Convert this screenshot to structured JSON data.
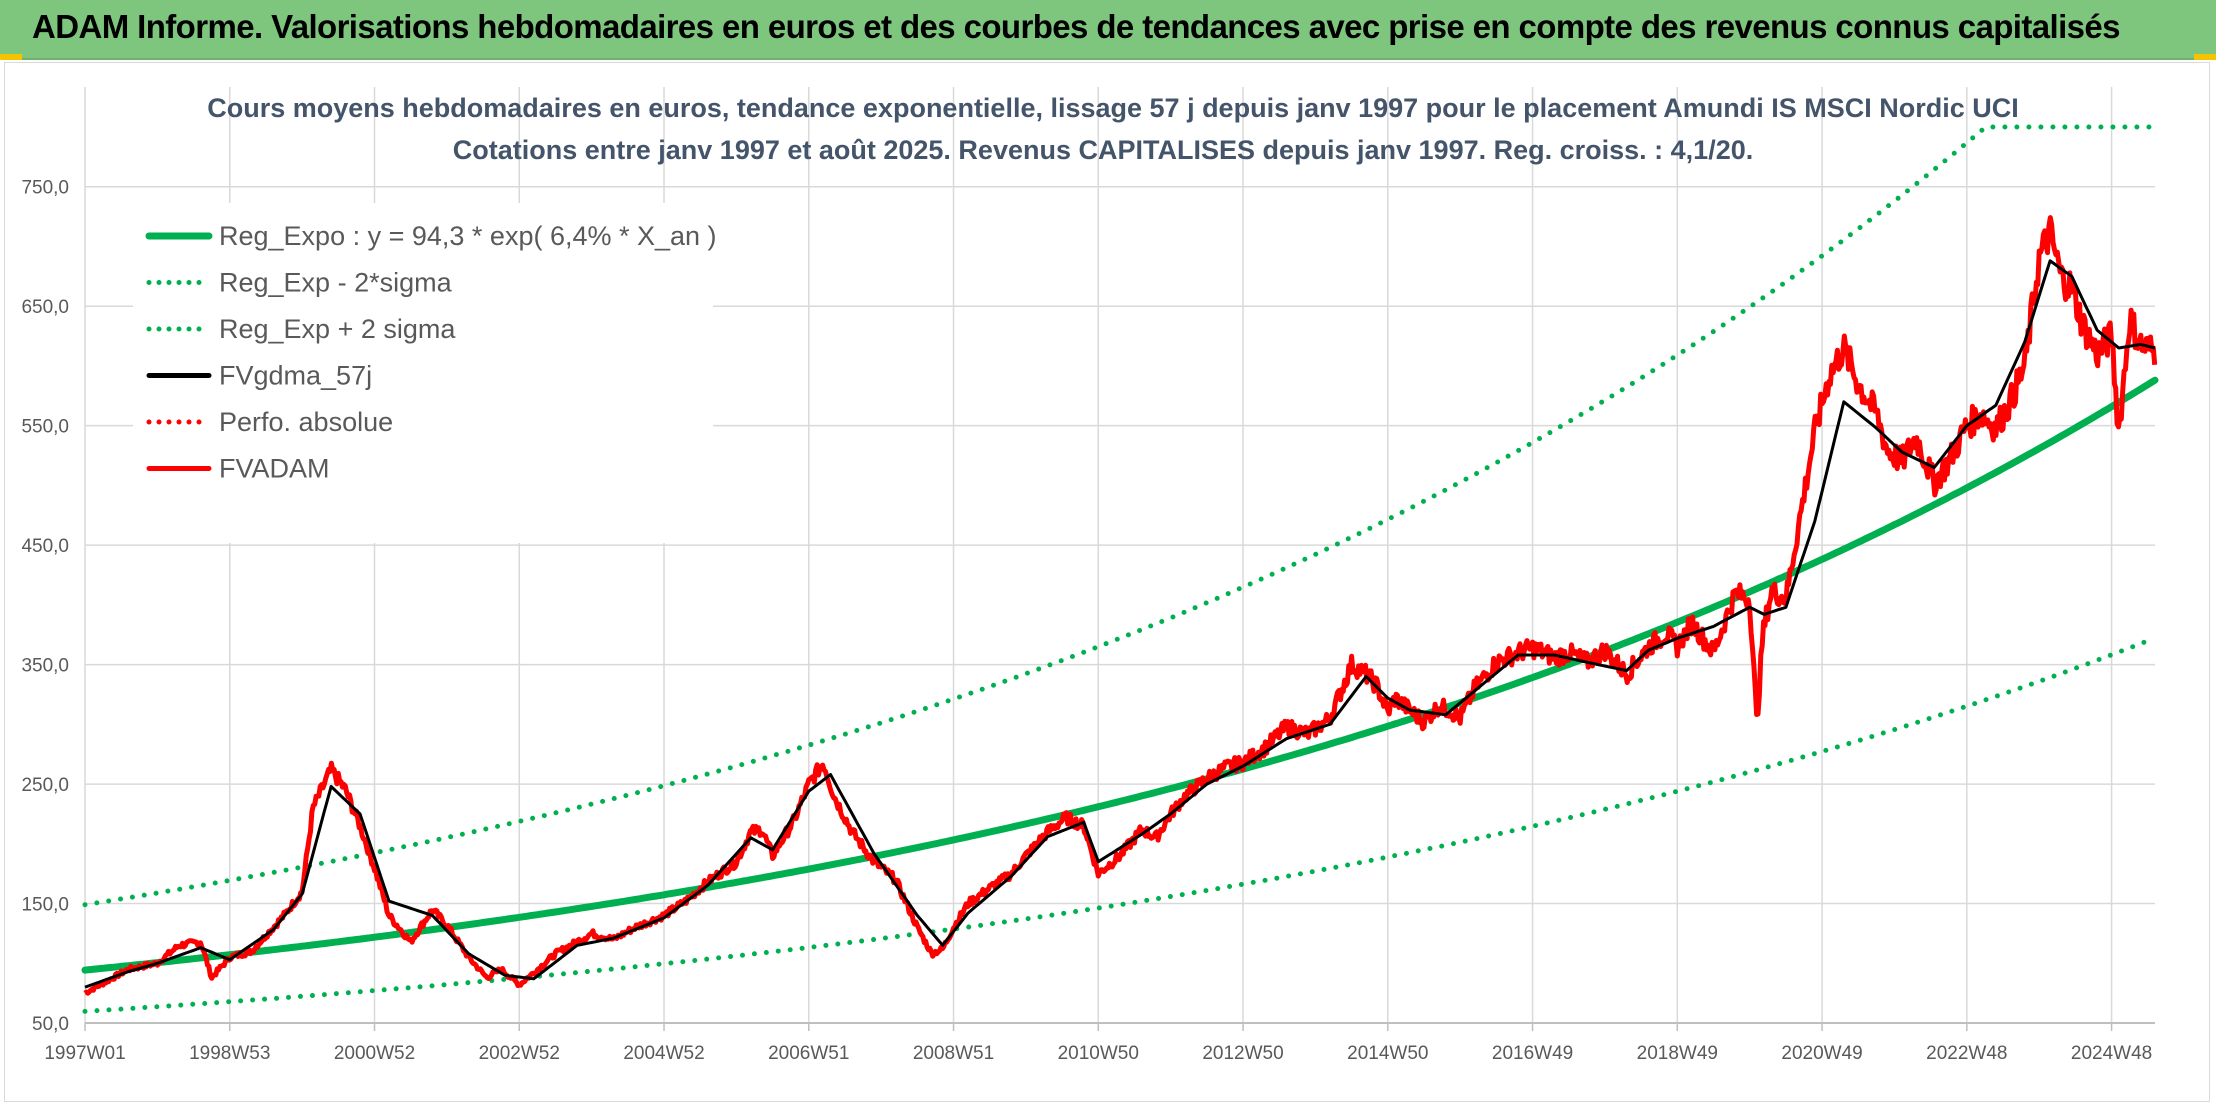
{
  "banner": {
    "title": "ADAM Informe. Valorisations hebdomadaires en euros et des courbes de tendances avec prise en compte des revenus connus capitalisés"
  },
  "colors": {
    "banner": "#7ec67e",
    "reg_expo": "#00b050",
    "fvgdma": "#000000",
    "fvadam": "#ff0000",
    "perfo": "#ff0000",
    "title_text": "#44546a"
  },
  "chart_data": {
    "type": "line",
    "title": "Cours moyens hebdomadaires en euros, tendance exponentielle, lissage 57 j depuis janv 1997 pour le placement Amundi IS MSCI Nordic UCI",
    "subtitle": "Cotations entre janv 1997 et août 2025. Revenus CAPITALISES depuis janv 1997. Reg. croiss. : 4,1/20.",
    "x_range": [
      1997.0,
      2025.6
    ],
    "x_ticks": [
      "1997W01",
      "1998W53",
      "2000W52",
      "2002W52",
      "2004W52",
      "2006W51",
      "2008W51",
      "2010W50",
      "2012W50",
      "2014W50",
      "2016W49",
      "2018W49",
      "2020W49",
      "2022W48",
      "2024W48"
    ],
    "x_tick_years": [
      1997.0,
      1999.0,
      2001.0,
      2003.0,
      2005.0,
      2007.0,
      2009.0,
      2011.0,
      2013.0,
      2015.0,
      2017.0,
      2019.0,
      2021.0,
      2023.0,
      2025.0
    ],
    "y_ticks": [
      "50,0",
      "150,0",
      "250,0",
      "350,0",
      "450,0",
      "550,0",
      "650,0",
      "750,0"
    ],
    "ylim": [
      50,
      800
    ],
    "grid": true,
    "legend_position": "top-left",
    "legend": [
      {
        "label": "Reg_Expo : y = 94,3 * exp( 6,4% *  X_an )",
        "style": "solid",
        "color": "#00b050"
      },
      {
        "label": "Reg_Exp - 2*sigma",
        "style": "dotted",
        "color": "#00b050"
      },
      {
        "label": "Reg_Exp + 2 sigma",
        "style": "dotted",
        "color": "#00b050"
      },
      {
        "label": "FVgdma_57j",
        "style": "solid",
        "color": "#000000"
      },
      {
        "label": "Perfo. absolue",
        "style": "dotted",
        "color": "#ff0000"
      },
      {
        "label": "FVADAM",
        "style": "solid",
        "color": "#ff0000"
      }
    ],
    "regression": {
      "a": 94.3,
      "rate": 0.064,
      "start_year": 1997.0,
      "sigma_factor": 1.58
    },
    "fvadam": {
      "x": [
        1997.0,
        1997.3,
        1997.6,
        1998.0,
        1998.3,
        1998.6,
        1998.75,
        1999.0,
        1999.3,
        1999.6,
        1999.75,
        2000.0,
        2000.15,
        2000.4,
        2000.6,
        2000.8,
        2001.0,
        2001.2,
        2001.5,
        2001.8,
        2002.0,
        2002.3,
        2002.55,
        2002.75,
        2003.0,
        2003.2,
        2003.5,
        2003.8,
        2004.0,
        2004.3,
        2004.6,
        2005.0,
        2005.3,
        2005.6,
        2006.0,
        2006.2,
        2006.35,
        2006.5,
        2006.8,
        2007.0,
        2007.2,
        2007.35,
        2007.6,
        2007.9,
        2008.2,
        2008.5,
        2008.7,
        2008.85,
        2009.0,
        2009.2,
        2009.5,
        2009.8,
        2010.0,
        2010.3,
        2010.55,
        2010.8,
        2011.0,
        2011.3,
        2011.6,
        2011.8,
        2012.0,
        2012.2,
        2012.5,
        2012.8,
        2013.0,
        2013.3,
        2013.6,
        2013.9,
        2014.2,
        2014.5,
        2014.7,
        2014.85,
        2015.0,
        2015.1,
        2015.3,
        2015.5,
        2015.7,
        2015.85,
        2016.0,
        2016.2,
        2016.5,
        2016.8,
        2017.0,
        2017.3,
        2017.5,
        2017.75,
        2018.0,
        2018.3,
        2018.6,
        2018.85,
        2019.0,
        2019.2,
        2019.5,
        2019.8,
        2020.0,
        2020.1,
        2020.18,
        2020.3,
        2020.5,
        2020.7,
        2020.9,
        2021.1,
        2021.3,
        2021.5,
        2021.75,
        2021.9,
        2022.1,
        2022.3,
        2022.55,
        2022.75,
        2023.0,
        2023.2,
        2023.4,
        2023.6,
        2023.8,
        2024.0,
        2024.15,
        2024.3,
        2024.45,
        2024.6,
        2024.8,
        2025.0,
        2025.1,
        2025.25,
        2025.4,
        2025.6
      ],
      "y": [
        75,
        85,
        95,
        100,
        115,
        118,
        88,
        105,
        110,
        130,
        140,
        160,
        230,
        262,
        245,
        215,
        180,
        140,
        118,
        145,
        132,
        105,
        88,
        95,
        82,
        92,
        108,
        118,
        125,
        120,
        130,
        140,
        152,
        168,
        185,
        210,
        212,
        190,
        220,
        250,
        268,
        240,
        210,
        185,
        170,
        130,
        108,
        112,
        130,
        150,
        163,
        175,
        190,
        210,
        222,
        215,
        175,
        190,
        212,
        205,
        225,
        240,
        255,
        265,
        268,
        280,
        298,
        292,
        305,
        350,
        342,
        332,
        310,
        322,
        312,
        302,
        315,
        312,
        305,
        330,
        352,
        360,
        364,
        356,
        360,
        352,
        362,
        342,
        365,
        376,
        365,
        385,
        360,
        410,
        405,
        300,
        375,
        412,
        405,
        475,
        545,
        592,
        615,
        585,
        560,
        530,
        520,
        540,
        502,
        520,
        550,
        560,
        548,
        570,
        600,
        690,
        712,
        675,
        665,
        635,
        610,
        625,
        545,
        640,
        618,
        612
      ]
    },
    "fvgdma": {
      "x": [
        1997.0,
        1997.6,
        1998.0,
        1998.6,
        1999.0,
        1999.6,
        2000.0,
        2000.4,
        2000.8,
        2001.2,
        2001.8,
        2002.3,
        2002.8,
        2003.2,
        2003.8,
        2004.3,
        2005.0,
        2005.6,
        2006.2,
        2006.5,
        2007.0,
        2007.3,
        2007.9,
        2008.5,
        2008.85,
        2009.2,
        2009.8,
        2010.3,
        2010.8,
        2011.0,
        2011.6,
        2012.0,
        2012.5,
        2013.0,
        2013.6,
        2014.2,
        2014.7,
        2015.0,
        2015.3,
        2015.8,
        2016.2,
        2016.8,
        2017.3,
        2017.75,
        2018.3,
        2018.6,
        2019.0,
        2019.5,
        2020.0,
        2020.2,
        2020.5,
        2020.9,
        2021.3,
        2021.75,
        2022.1,
        2022.55,
        2023.0,
        2023.4,
        2023.8,
        2024.15,
        2024.45,
        2024.8,
        2025.1,
        2025.4,
        2025.6
      ],
      "y": [
        80,
        93,
        100,
        113,
        103,
        128,
        158,
        248,
        225,
        152,
        140,
        108,
        90,
        87,
        115,
        121,
        138,
        165,
        205,
        195,
        244,
        258,
        192,
        140,
        115,
        142,
        173,
        206,
        218,
        185,
        208,
        225,
        250,
        265,
        288,
        300,
        340,
        322,
        312,
        308,
        328,
        358,
        358,
        352,
        345,
        362,
        372,
        382,
        398,
        392,
        398,
        470,
        570,
        548,
        528,
        515,
        550,
        567,
        620,
        688,
        675,
        630,
        615,
        618,
        615
      ]
    }
  }
}
